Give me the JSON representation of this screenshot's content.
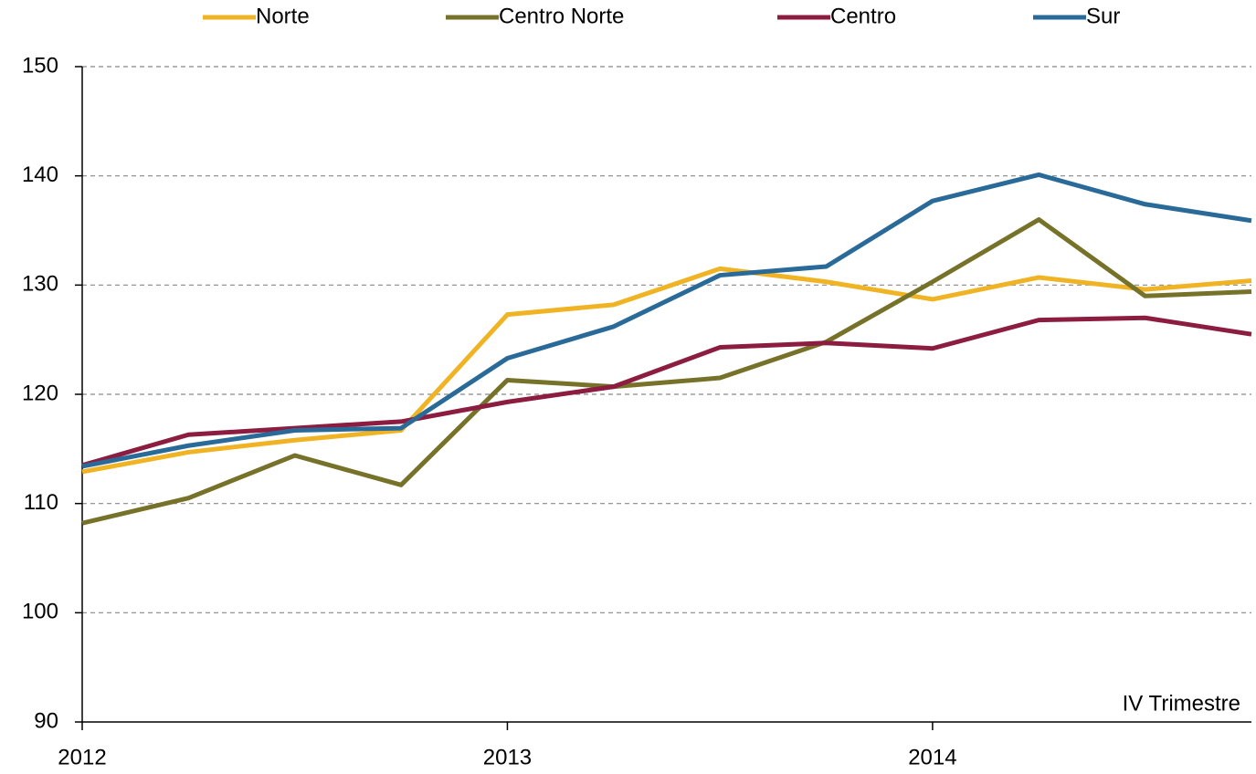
{
  "chart_data": {
    "type": "line",
    "categories": [
      "2012",
      null,
      null,
      null,
      "2013",
      null,
      null,
      null,
      "2014",
      null,
      null,
      null
    ],
    "series": [
      {
        "name": "Norte",
        "color": "#f0b323",
        "values": [
          112.9,
          114.7,
          115.8,
          116.7,
          127.3,
          128.2,
          131.5,
          130.3,
          128.7,
          130.7,
          129.6,
          130.4
        ]
      },
      {
        "name": "Centro Norte",
        "color": "#76722a",
        "values": [
          108.2,
          110.5,
          114.4,
          111.7,
          121.3,
          120.7,
          121.5,
          124.8,
          130.3,
          136.0,
          129.0,
          129.4
        ]
      },
      {
        "name": "Centro",
        "color": "#8c1d40",
        "values": [
          113.5,
          116.3,
          116.9,
          117.5,
          119.3,
          120.7,
          124.3,
          124.7,
          124.2,
          126.8,
          127.0,
          125.5
        ]
      },
      {
        "name": "Sur",
        "color": "#2a6a99",
        "values": [
          113.4,
          115.3,
          116.7,
          116.9,
          123.3,
          126.2,
          130.9,
          131.7,
          137.7,
          140.1,
          137.4,
          135.9
        ]
      }
    ],
    "ylim": [
      90,
      150
    ],
    "yticks": [
      90,
      100,
      110,
      120,
      130,
      140,
      150
    ],
    "grid": true,
    "annotation": "IV Trimestre"
  }
}
